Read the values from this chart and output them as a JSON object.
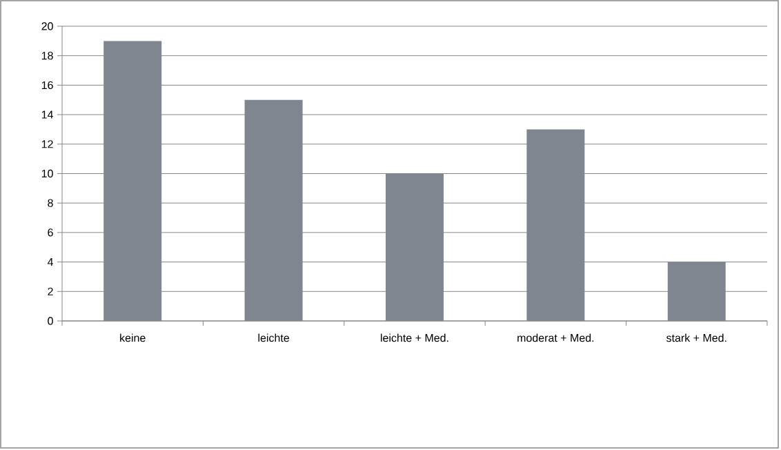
{
  "chart_data": {
    "type": "bar",
    "categories": [
      "keine",
      "leichte",
      "leichte + Med.",
      "moderat + Med.",
      "stark + Med."
    ],
    "values": [
      19,
      15,
      10,
      13,
      4
    ],
    "color": "#7f868f",
    "ylim": [
      0,
      20
    ],
    "yticks": [
      0,
      2,
      4,
      6,
      8,
      10,
      12,
      14,
      16,
      18,
      20
    ],
    "grid": "y"
  }
}
